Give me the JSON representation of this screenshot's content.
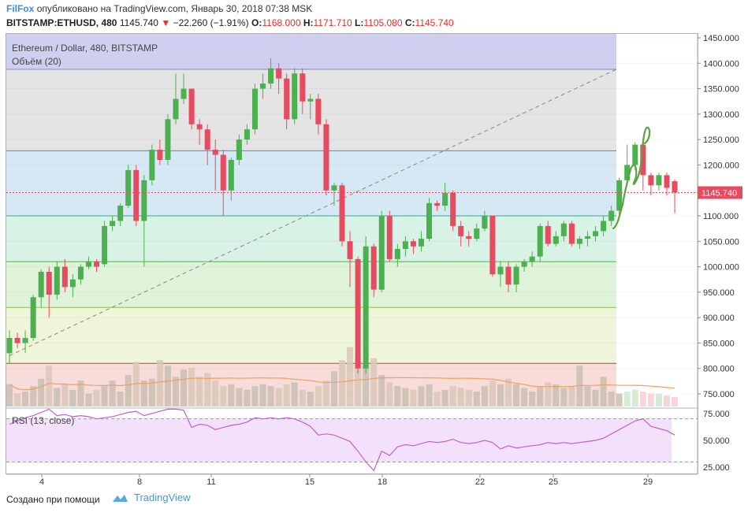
{
  "header": {
    "brand": "FilFox",
    "published": "опубликовано на TradingView.com, Январь 30, 2018 07:38 MSK",
    "symbol": "BITSTAMP:ETHUSD, 480",
    "last": "1145.740",
    "change": "−22.260 (−1.91%)",
    "o_label": "O:",
    "o_val": "1168.000",
    "h_label": "H:",
    "h_val": "1171.710",
    "l_label": "L:",
    "l_val": "1105.080",
    "c_label": "C:",
    "c_val": "1145.740"
  },
  "legend": {
    "title": "Ethereum / Dollar, 480, BITSTAMP",
    "volume": "Объём (20)",
    "rsi": "RSI (13, close)"
  },
  "footer": {
    "created": "Создано при помощи",
    "logo_text": "TradingView"
  },
  "colors": {
    "up": "#4caf50",
    "down": "#e84a5f",
    "rsi_line": "#c060d0",
    "volume_ma": "#f0a060",
    "price_label_bg": "#e84a5f"
  },
  "chart_data": [
    {
      "type": "candlestick",
      "ylim": [
        700,
        1460
      ],
      "y_ticks": [
        "1450.000",
        "1400.000",
        "1350.000",
        "1300.000",
        "1250.000",
        "1200.000",
        "1150.000",
        "1100.000",
        "1050.000",
        "1000.000",
        "950.000",
        "900.000",
        "850.000",
        "800.000",
        "750.000"
      ],
      "x_ticks": [
        "4",
        "8",
        "11",
        "15",
        "18",
        "22",
        "25",
        "29"
      ],
      "current_price_label": "1145.740",
      "fib_levels": [
        1388,
        1228,
        1100,
        1010,
        920,
        810
      ],
      "candles": [
        [
          830,
          860,
          810,
          875
        ],
        [
          860,
          850,
          840,
          870
        ],
        [
          850,
          860,
          830,
          875
        ],
        [
          860,
          940,
          855,
          945
        ],
        [
          940,
          990,
          920,
          995
        ],
        [
          990,
          945,
          900,
          1000
        ],
        [
          945,
          1000,
          935,
          1010
        ],
        [
          1000,
          960,
          950,
          1015
        ],
        [
          960,
          975,
          940,
          985
        ],
        [
          975,
          1000,
          965,
          1005
        ],
        [
          1000,
          1010,
          995,
          1020
        ],
        [
          1010,
          1000,
          990,
          1015
        ],
        [
          1005,
          1080,
          1000,
          1090
        ],
        [
          1080,
          1090,
          1070,
          1100
        ],
        [
          1090,
          1120,
          1080,
          1125
        ],
        [
          1120,
          1190,
          1115,
          1200
        ],
        [
          1190,
          1090,
          1080,
          1200
        ],
        [
          1090,
          1170,
          1000,
          1180
        ],
        [
          1170,
          1230,
          1160,
          1240
        ],
        [
          1230,
          1210,
          1200,
          1250
        ],
        [
          1210,
          1290,
          1200,
          1300
        ],
        [
          1290,
          1330,
          1280,
          1380
        ],
        [
          1330,
          1350,
          1320,
          1380
        ],
        [
          1350,
          1280,
          1270,
          1350
        ],
        [
          1280,
          1270,
          1240,
          1290
        ],
        [
          1270,
          1230,
          1200,
          1280
        ],
        [
          1230,
          1220,
          1150,
          1250
        ],
        [
          1220,
          1150,
          1100,
          1230
        ],
        [
          1150,
          1210,
          1130,
          1215
        ],
        [
          1210,
          1250,
          1200,
          1260
        ],
        [
          1250,
          1270,
          1240,
          1280
        ],
        [
          1270,
          1350,
          1260,
          1360
        ],
        [
          1350,
          1360,
          1330,
          1380
        ],
        [
          1360,
          1390,
          1350,
          1410
        ],
        [
          1390,
          1370,
          1340,
          1400
        ],
        [
          1370,
          1290,
          1270,
          1380
        ],
        [
          1290,
          1380,
          1280,
          1390
        ],
        [
          1380,
          1325,
          1300,
          1390
        ],
        [
          1325,
          1330,
          1290,
          1340
        ],
        [
          1330,
          1280,
          1260,
          1340
        ],
        [
          1280,
          1150,
          1140,
          1290
        ],
        [
          1150,
          1160,
          1120,
          1165
        ],
        [
          1160,
          1050,
          1040,
          1165
        ],
        [
          1050,
          1015,
          960,
          1070
        ],
        [
          1015,
          800,
          790,
          1020
        ],
        [
          800,
          1040,
          790,
          1060
        ],
        [
          1040,
          955,
          940,
          1045
        ],
        [
          955,
          1100,
          950,
          1110
        ],
        [
          1100,
          1015,
          1010,
          1110
        ],
        [
          1015,
          1035,
          1000,
          1045
        ],
        [
          1035,
          1050,
          1020,
          1060
        ],
        [
          1050,
          1040,
          1025,
          1055
        ],
        [
          1040,
          1055,
          1030,
          1070
        ],
        [
          1055,
          1125,
          1050,
          1135
        ],
        [
          1125,
          1120,
          1110,
          1130
        ],
        [
          1120,
          1145,
          1110,
          1165
        ],
        [
          1145,
          1080,
          1070,
          1150
        ],
        [
          1080,
          1060,
          1040,
          1090
        ],
        [
          1060,
          1055,
          1040,
          1070
        ],
        [
          1055,
          1075,
          1050,
          1085
        ],
        [
          1075,
          1100,
          1070,
          1110
        ],
        [
          1100,
          985,
          980,
          1100
        ],
        [
          985,
          1000,
          960,
          1010
        ],
        [
          1000,
          965,
          950,
          1010
        ],
        [
          965,
          1000,
          950,
          1005
        ],
        [
          1000,
          1010,
          990,
          1015
        ],
        [
          1010,
          1020,
          1000,
          1030
        ],
        [
          1020,
          1080,
          1010,
          1085
        ],
        [
          1080,
          1045,
          1040,
          1090
        ],
        [
          1045,
          1060,
          1040,
          1070
        ],
        [
          1060,
          1085,
          1050,
          1090
        ],
        [
          1085,
          1045,
          1040,
          1090
        ],
        [
          1045,
          1055,
          1035,
          1060
        ],
        [
          1055,
          1060,
          1040,
          1070
        ],
        [
          1060,
          1070,
          1050,
          1080
        ],
        [
          1070,
          1090,
          1060,
          1100
        ],
        [
          1090,
          1110,
          1080,
          1120
        ],
        [
          1110,
          1170,
          1100,
          1175
        ],
        [
          1170,
          1200,
          1160,
          1240
        ],
        [
          1200,
          1240,
          1190,
          1245
        ],
        [
          1240,
          1180,
          1150,
          1245
        ],
        [
          1180,
          1160,
          1140,
          1185
        ],
        [
          1160,
          1180,
          1150,
          1185
        ],
        [
          1180,
          1155,
          1140,
          1185
        ],
        [
          1168,
          1146,
          1105,
          1172
        ]
      ],
      "volume": [
        60,
        35,
        40,
        55,
        75,
        110,
        50,
        60,
        45,
        70,
        35,
        45,
        55,
        70,
        40,
        85,
        120,
        70,
        75,
        125,
        110,
        80,
        100,
        105,
        80,
        90,
        70,
        55,
        60,
        50,
        45,
        55,
        60,
        55,
        50,
        60,
        65,
        45,
        40,
        55,
        70,
        95,
        125,
        160,
        130,
        110,
        130,
        85,
        65,
        55,
        50,
        45,
        55,
        60,
        40,
        45,
        55,
        50,
        45,
        40,
        55,
        70,
        60,
        75,
        60,
        50,
        40,
        55,
        65,
        60,
        50,
        55,
        110,
        55,
        45,
        80,
        40,
        35,
        40,
        45,
        40,
        35,
        35,
        30,
        25
      ]
    },
    {
      "type": "line",
      "title": "RSI (13, close)",
      "ylim": [
        20,
        80
      ],
      "y_ticks": [
        "75.000",
        "50.000",
        "25.000"
      ],
      "values": [
        65,
        68,
        71,
        73,
        76,
        79,
        73,
        74,
        72,
        73,
        72,
        70,
        71,
        72,
        74,
        76,
        77,
        73,
        75,
        77,
        79,
        79,
        78,
        62,
        65,
        64,
        60,
        62,
        64,
        65,
        67,
        71,
        70,
        71,
        70,
        71,
        70,
        67,
        63,
        55,
        56,
        55,
        52,
        49,
        40,
        30,
        22,
        40,
        36,
        44,
        46,
        45,
        47,
        49,
        48,
        49,
        51,
        48,
        47,
        48,
        50,
        48,
        42,
        45,
        43,
        44,
        45,
        46,
        48,
        47,
        48,
        47,
        48,
        49,
        50,
        52,
        56,
        60,
        64,
        68,
        70,
        63,
        61,
        59,
        55
      ]
    }
  ]
}
